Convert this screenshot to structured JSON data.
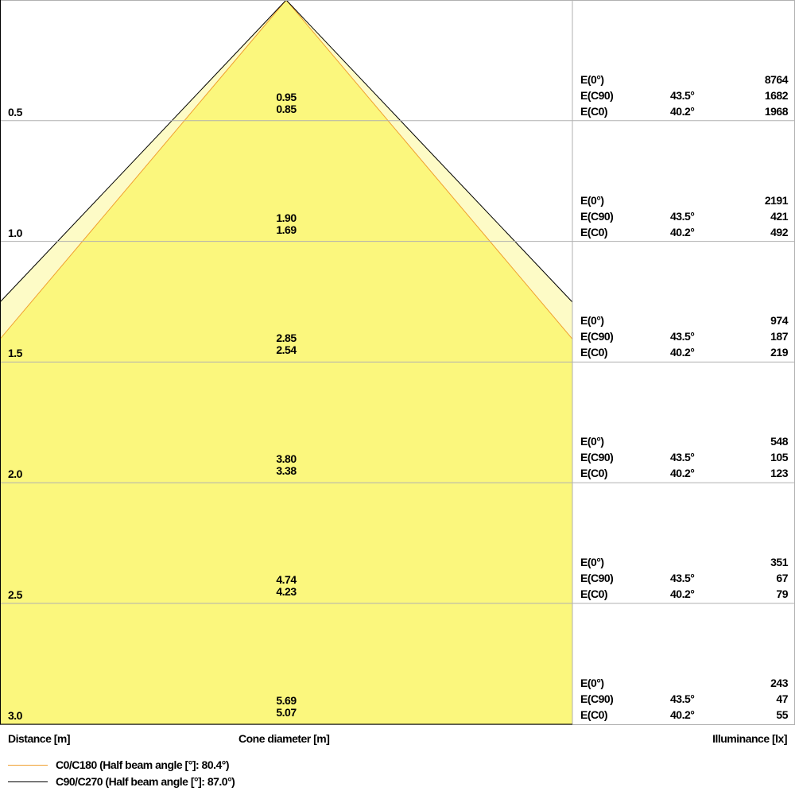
{
  "chart_data": {
    "type": "cone-diagram",
    "colors": {
      "c0": "#f0a030",
      "c90": "#000000",
      "fill_c0": "#fbf77d",
      "fill_c90": "#fdfbc6",
      "grid": "#b0b0b0"
    },
    "rows": [
      {
        "distance": "0.5",
        "d_c90": "0.95",
        "d_c0": "0.85",
        "e0": "8764",
        "angle_c90": "43.5°",
        "e_c90": "1682",
        "angle_c0": "40.2°",
        "e_c0": "1968"
      },
      {
        "distance": "1.0",
        "d_c90": "1.90",
        "d_c0": "1.69",
        "e0": "2191",
        "angle_c90": "43.5°",
        "e_c90": "421",
        "angle_c0": "40.2°",
        "e_c0": "492"
      },
      {
        "distance": "1.5",
        "d_c90": "2.85",
        "d_c0": "2.54",
        "e0": "974",
        "angle_c90": "43.5°",
        "e_c90": "187",
        "angle_c0": "40.2°",
        "e_c0": "219"
      },
      {
        "distance": "2.0",
        "d_c90": "3.80",
        "d_c0": "3.38",
        "e0": "548",
        "angle_c90": "43.5°",
        "e_c90": "105",
        "angle_c0": "40.2°",
        "e_c0": "123"
      },
      {
        "distance": "2.5",
        "d_c90": "4.74",
        "d_c0": "4.23",
        "e0": "351",
        "angle_c90": "43.5°",
        "e_c90": "67",
        "angle_c0": "40.2°",
        "e_c0": "79"
      },
      {
        "distance": "3.0",
        "d_c90": "5.69",
        "d_c0": "5.07",
        "e0": "243",
        "angle_c90": "43.5°",
        "e_c90": "47",
        "angle_c0": "40.2°",
        "e_c0": "55"
      }
    ],
    "e0_label": "E(0°)",
    "ec90_label": "E(C90)",
    "ec0_label": "E(C0)",
    "xlabel_left": "Distance [m]",
    "xlabel_center": "Cone diameter [m]",
    "xlabel_right": "Illuminance [lx]",
    "legend": [
      {
        "name": "C0/C180 (Half beam angle [°]: 80.4°)",
        "color": "#f0a030"
      },
      {
        "name": "C90/C270 (Half beam angle [°]: 87.0°)",
        "color": "#000000"
      }
    ]
  }
}
